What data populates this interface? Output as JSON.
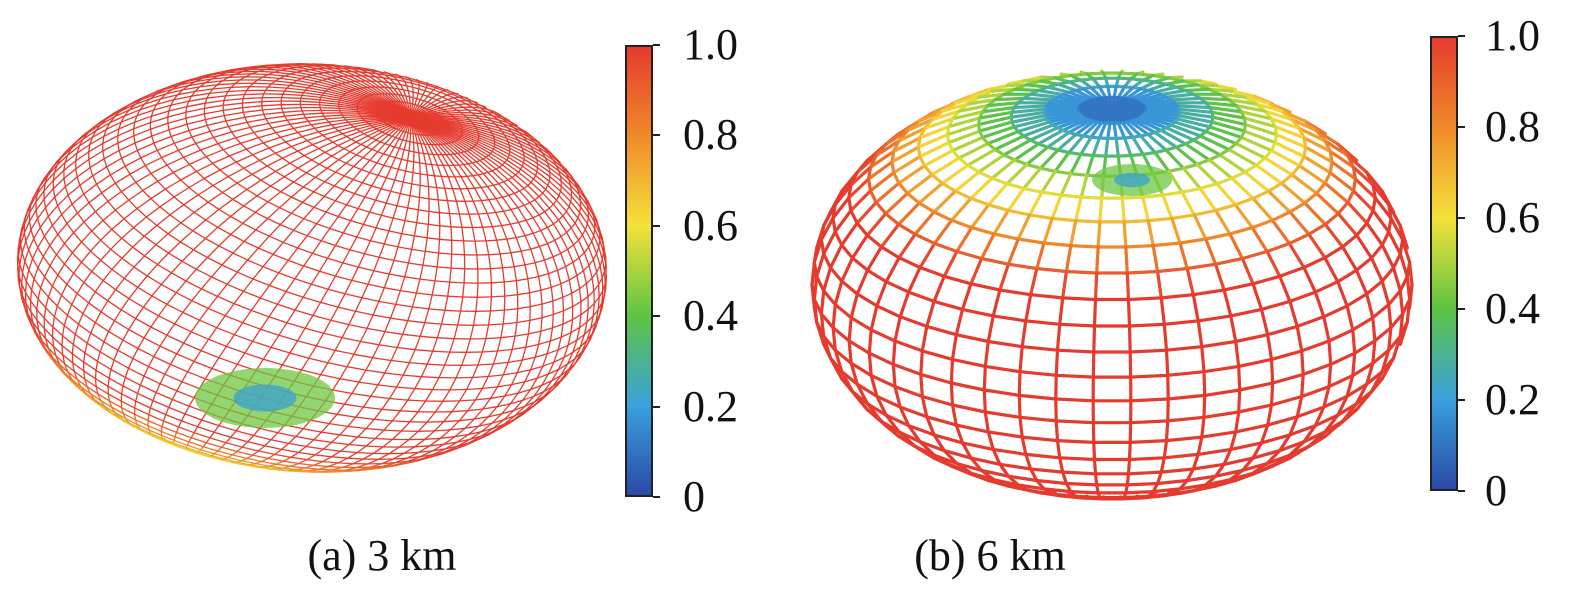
{
  "chart_data": [
    {
      "type": "surface",
      "caption": "(a) 3 km",
      "colorbar": {
        "range": [
          0,
          1.0
        ],
        "ticks": [
          0,
          0.2,
          0.4,
          0.6,
          0.8,
          1.0
        ],
        "tick_labels": [
          "0",
          "0.2",
          "0.4",
          "0.6",
          "0.8",
          "1.0"
        ],
        "colormap": [
          "#2b4aa8",
          "#3aa0dc",
          "#5ec443",
          "#f4e23a",
          "#f08a2a",
          "#e53b2e"
        ]
      },
      "grid": "fine wireframe",
      "dip_position": "bottom"
    },
    {
      "type": "surface",
      "caption": "(b) 6 km",
      "colorbar": {
        "range": [
          0,
          1.0
        ],
        "ticks": [
          0,
          0.2,
          0.4,
          0.6,
          0.8,
          1.0
        ],
        "tick_labels": [
          "0",
          "0.2",
          "0.4",
          "0.6",
          "0.8",
          "1.0"
        ],
        "colormap": [
          "#2b4aa8",
          "#3aa0dc",
          "#5ec443",
          "#f4e23a",
          "#f08a2a",
          "#e53b2e"
        ]
      },
      "grid": "coarse wireframe",
      "dip_position": "top"
    }
  ]
}
